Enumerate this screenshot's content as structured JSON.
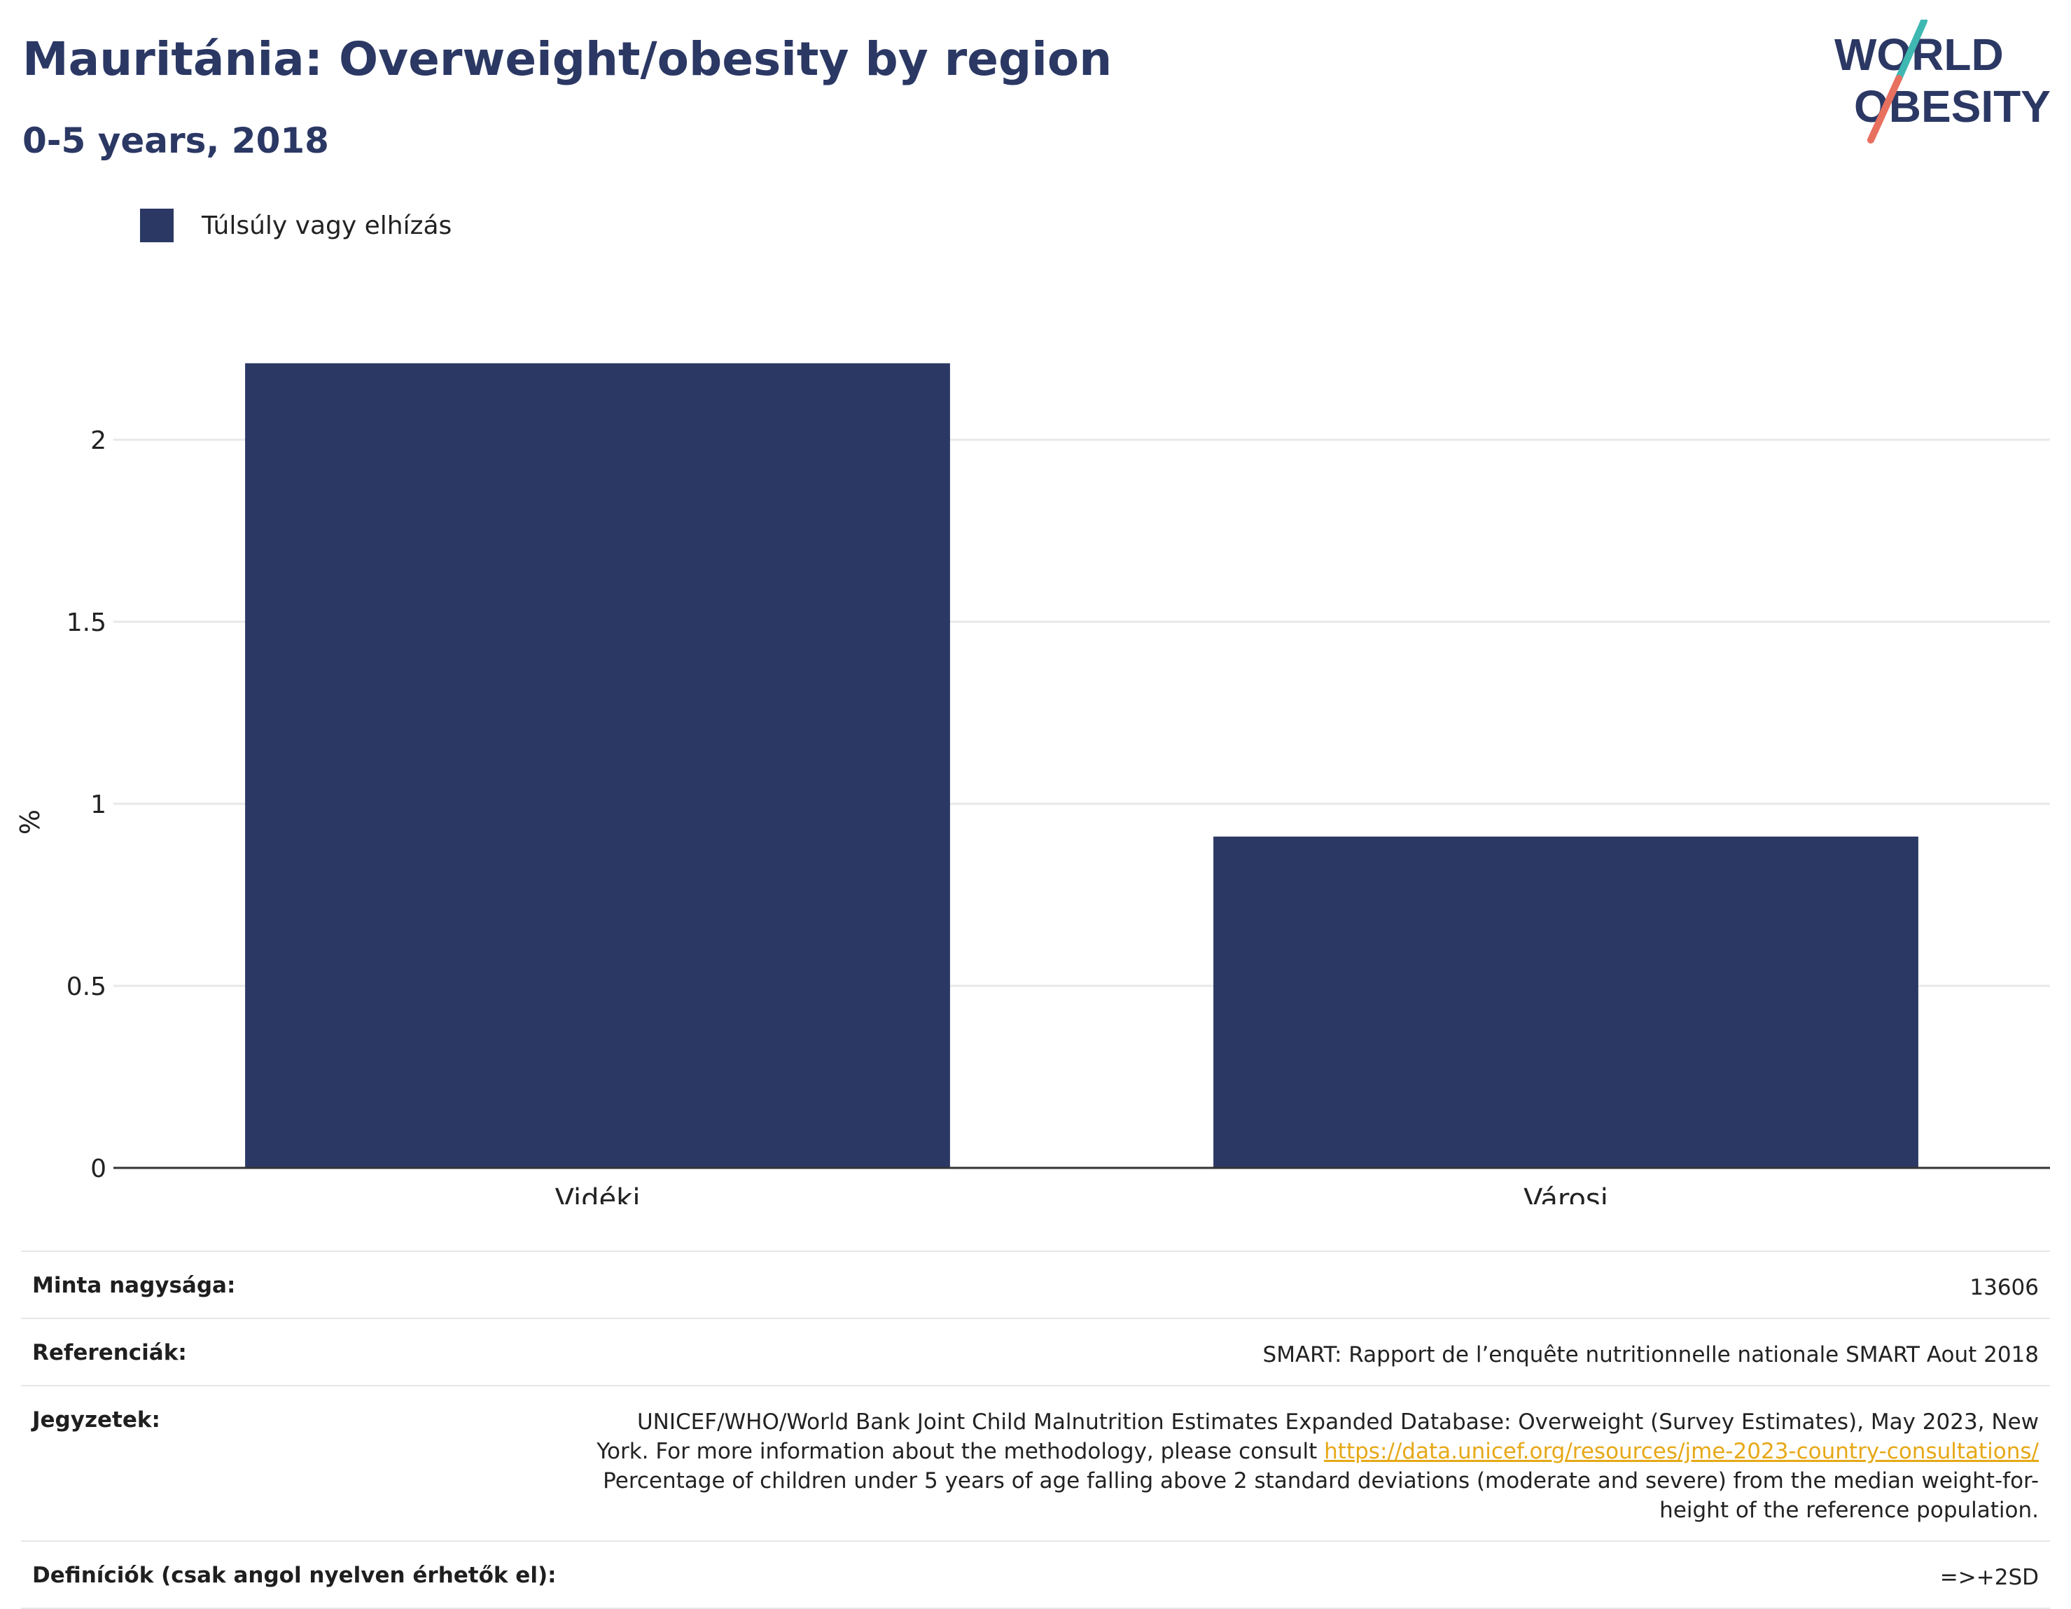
{
  "title": "Mauritánia: Overweight/obesity by region",
  "subtitle": "0-5 years, 2018",
  "logo": {
    "line1": "WORLD",
    "line2": "OBESITY"
  },
  "legend": {
    "label": "Túlsúly vagy elhízás",
    "color": "#2b3864"
  },
  "chart_data": {
    "type": "bar",
    "categories": [
      "Vidéki",
      "Városi"
    ],
    "series": [
      {
        "name": "Túlsúly vagy elhízás",
        "values": [
          2.21,
          0.91
        ]
      }
    ],
    "ylabel": "%",
    "xlabel": "",
    "ylim": [
      0,
      2.4
    ],
    "yticks": [
      0,
      0.5,
      1,
      1.5,
      2
    ],
    "ytick_labels": [
      "0",
      "0.5",
      "1",
      "1.5",
      "2"
    ],
    "grid": true,
    "legend_position": "top-left",
    "bar_color": "#2b3864"
  },
  "info": {
    "sample_label": "Minta nagysága:",
    "sample_value": "13606",
    "references_label": "Referenciák:",
    "references_value": "SMART: Rapport de l’enquête nutritionnelle nationale SMART Aout 2018",
    "notes_label": "Jegyzetek:",
    "notes_text1": "UNICEF/WHO/World Bank Joint Child Malnutrition Estimates Expanded Database: Overweight (Survey Estimates), May 2023, New York. For more information about the methodology, please consult",
    "notes_link": "https://data.unicef.org/resources/jme-2023-country-consultations/",
    "notes_text2": "Percentage of children under 5 years of age falling above 2 standard deviations (moderate and severe) from the median weight-for-height of the reference population.",
    "definitions_label": "Definíciók (csak angol nyelven érhetők el):",
    "definitions_value": "=>+2SD"
  },
  "colors": {
    "title": "#2b3864",
    "bar": "#2b3864",
    "logo_teal": "#3fb8b2",
    "logo_coral": "#e8705f",
    "link": "#e6a817"
  }
}
